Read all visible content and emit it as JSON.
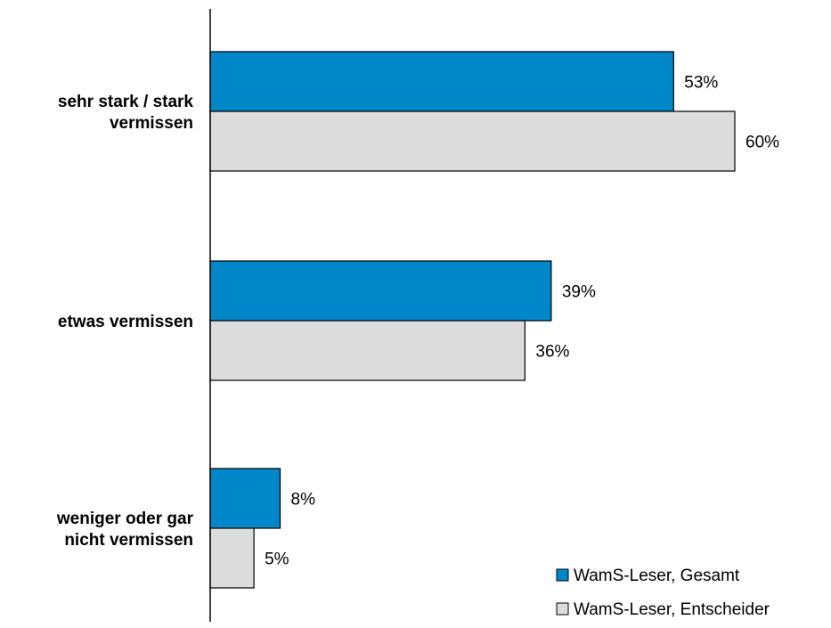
{
  "chart_data": {
    "type": "bar",
    "orientation": "horizontal",
    "categories": [
      [
        "sehr stark / stark",
        "vermissen"
      ],
      [
        "etwas vermissen"
      ],
      [
        "weniger oder gar",
        "nicht vermissen"
      ]
    ],
    "series": [
      {
        "name": "WamS-Leser, Gesamt",
        "values": [
          53,
          39,
          8
        ],
        "labels": [
          "53%",
          "39%",
          "8%"
        ],
        "color": "#0087CA"
      },
      {
        "name": "WamS-Leser, Entscheider",
        "values": [
          60,
          36,
          5
        ],
        "labels": [
          "60%",
          "36%",
          "5%"
        ],
        "color": "#DCDCDC"
      }
    ],
    "unit": "%",
    "xlim": [
      0,
      70
    ],
    "grid": false,
    "legend_position": "bottom-right"
  }
}
